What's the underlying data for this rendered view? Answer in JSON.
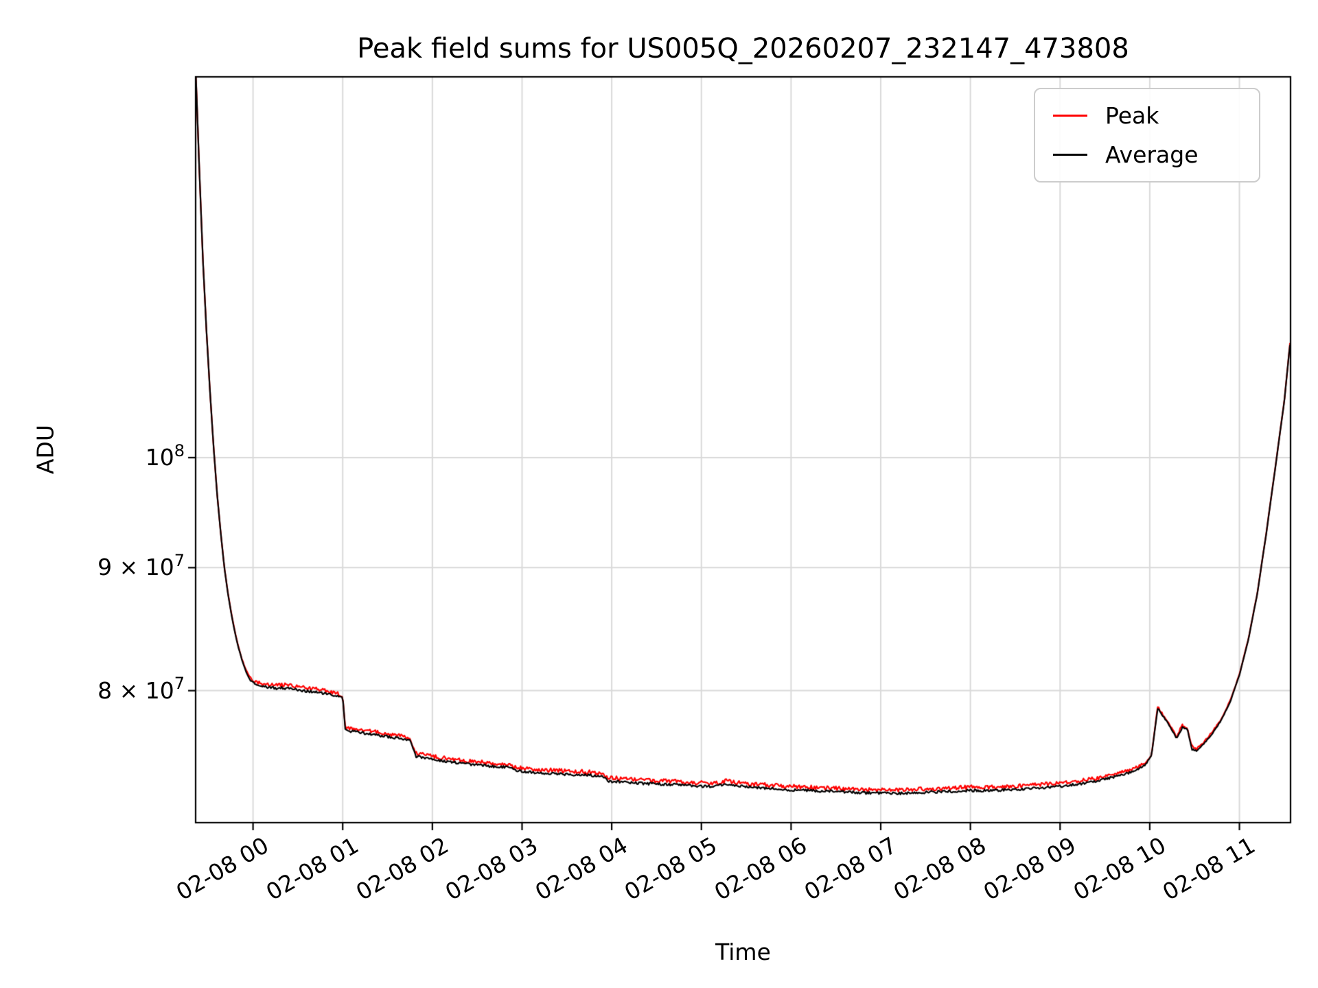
{
  "chart_data": {
    "type": "line",
    "title": "Peak field sums for US005Q_20260207_232147_473808",
    "xlabel": "Time",
    "ylabel": "ADU",
    "yscale": "log",
    "ylim": [
      70500000,
      144000000
    ],
    "xlim_hours_from_0208_0000": [
      -0.64,
      11.57
    ],
    "grid": true,
    "x_ticks": [
      {
        "hour": 0,
        "label": "02-08 00"
      },
      {
        "hour": 1,
        "label": "02-08 01"
      },
      {
        "hour": 2,
        "label": "02-08 02"
      },
      {
        "hour": 3,
        "label": "02-08 03"
      },
      {
        "hour": 4,
        "label": "02-08 04"
      },
      {
        "hour": 5,
        "label": "02-08 05"
      },
      {
        "hour": 6,
        "label": "02-08 06"
      },
      {
        "hour": 7,
        "label": "02-08 07"
      },
      {
        "hour": 8,
        "label": "02-08 08"
      },
      {
        "hour": 9,
        "label": "02-08 09"
      },
      {
        "hour": 10,
        "label": "02-08 10"
      },
      {
        "hour": 11,
        "label": "02-08 11"
      }
    ],
    "y_ticks": [
      {
        "value": 100000000,
        "mantissa": "10",
        "exp": "8"
      },
      {
        "value": 90000000,
        "mantissa": "9 × 10",
        "exp": "7"
      },
      {
        "value": 80000000,
        "mantissa": "8 × 10",
        "exp": "7"
      }
    ],
    "legend": {
      "position": "upper right",
      "items": [
        {
          "label": "Peak",
          "color": "#ff0000"
        },
        {
          "label": "Average",
          "color": "#000000"
        }
      ]
    },
    "series": [
      {
        "name": "Peak",
        "color": "#ff0000",
        "relation": "average-plus-positive-fluctuation"
      },
      {
        "name": "Average",
        "color": "#000000",
        "relation": "base-curve"
      }
    ],
    "base_curve_points": [
      [
        -0.64,
        145000000.0
      ],
      [
        -0.6,
        132000000.0
      ],
      [
        -0.56,
        121000000.0
      ],
      [
        -0.52,
        113000000.0
      ],
      [
        -0.48,
        106500000.0
      ],
      [
        -0.44,
        101000000.0
      ],
      [
        -0.4,
        96500000.0
      ],
      [
        -0.36,
        93000000.0
      ],
      [
        -0.32,
        90000000.0
      ],
      [
        -0.28,
        87800000.0
      ],
      [
        -0.24,
        86000000.0
      ],
      [
        -0.2,
        84500000.0
      ],
      [
        -0.16,
        83300000.0
      ],
      [
        -0.12,
        82300000.0
      ],
      [
        -0.08,
        81500000.0
      ],
      [
        -0.04,
        80900000.0
      ],
      [
        0.0,
        80600000.0
      ],
      [
        0.1,
        80300000.0
      ],
      [
        0.25,
        80200000.0
      ],
      [
        0.4,
        80200000.0
      ],
      [
        0.55,
        80000000.0
      ],
      [
        0.7,
        79900000.0
      ],
      [
        0.85,
        79700000.0
      ],
      [
        1.0,
        79500000.0
      ],
      [
        1.03,
        77000000.0
      ],
      [
        1.15,
        76900000.0
      ],
      [
        1.3,
        76750000.0
      ],
      [
        1.45,
        76600000.0
      ],
      [
        1.6,
        76450000.0
      ],
      [
        1.75,
        76300000.0
      ],
      [
        1.82,
        75100000.0
      ],
      [
        1.95,
        75000000.0
      ],
      [
        2.1,
        74800000.0
      ],
      [
        2.3,
        74650000.0
      ],
      [
        2.5,
        74500000.0
      ],
      [
        2.7,
        74400000.0
      ],
      [
        2.88,
        74350000.0
      ],
      [
        2.93,
        74100000.0
      ],
      [
        3.1,
        74000000.0
      ],
      [
        3.3,
        73900000.0
      ],
      [
        3.5,
        73850000.0
      ],
      [
        3.7,
        73800000.0
      ],
      [
        3.9,
        73700000.0
      ],
      [
        3.97,
        73350000.0
      ],
      [
        4.15,
        73300000.0
      ],
      [
        4.35,
        73200000.0
      ],
      [
        4.55,
        73150000.0
      ],
      [
        4.75,
        73100000.0
      ],
      [
        4.95,
        73000000.0
      ],
      [
        5.15,
        73000000.0
      ],
      [
        5.3,
        73150000.0
      ],
      [
        5.45,
        73000000.0
      ],
      [
        5.6,
        72900000.0
      ],
      [
        5.8,
        72850000.0
      ],
      [
        6.0,
        72750000.0
      ],
      [
        6.2,
        72700000.0
      ],
      [
        6.4,
        72650000.0
      ],
      [
        6.6,
        72600000.0
      ],
      [
        6.8,
        72550000.0
      ],
      [
        7.0,
        72500000.0
      ],
      [
        7.2,
        72500000.0
      ],
      [
        7.4,
        72550000.0
      ],
      [
        7.6,
        72600000.0
      ],
      [
        7.8,
        72650000.0
      ],
      [
        8.0,
        72700000.0
      ],
      [
        8.2,
        72700000.0
      ],
      [
        8.4,
        72750000.0
      ],
      [
        8.6,
        72800000.0
      ],
      [
        8.8,
        72900000.0
      ],
      [
        9.0,
        73000000.0
      ],
      [
        9.2,
        73150000.0
      ],
      [
        9.4,
        73350000.0
      ],
      [
        9.6,
        73650000.0
      ],
      [
        9.8,
        74000000.0
      ],
      [
        9.95,
        74500000.0
      ],
      [
        10.02,
        75200000.0
      ],
      [
        10.06,
        77200000.0
      ],
      [
        10.09,
        78700000.0
      ],
      [
        10.12,
        78300000.0
      ],
      [
        10.2,
        77600000.0
      ],
      [
        10.3,
        76400000.0
      ],
      [
        10.36,
        77200000.0
      ],
      [
        10.42,
        77100000.0
      ],
      [
        10.47,
        75600000.0
      ],
      [
        10.52,
        75500000.0
      ],
      [
        10.6,
        76000000.0
      ],
      [
        10.7,
        76800000.0
      ],
      [
        10.8,
        77800000.0
      ],
      [
        10.9,
        79200000.0
      ],
      [
        11.0,
        81200000.0
      ],
      [
        11.1,
        84000000.0
      ],
      [
        11.2,
        87800000.0
      ],
      [
        11.3,
        93000000.0
      ],
      [
        11.4,
        99000000.0
      ],
      [
        11.5,
        105500000.0
      ],
      [
        11.57,
        112000000.0
      ]
    ]
  }
}
